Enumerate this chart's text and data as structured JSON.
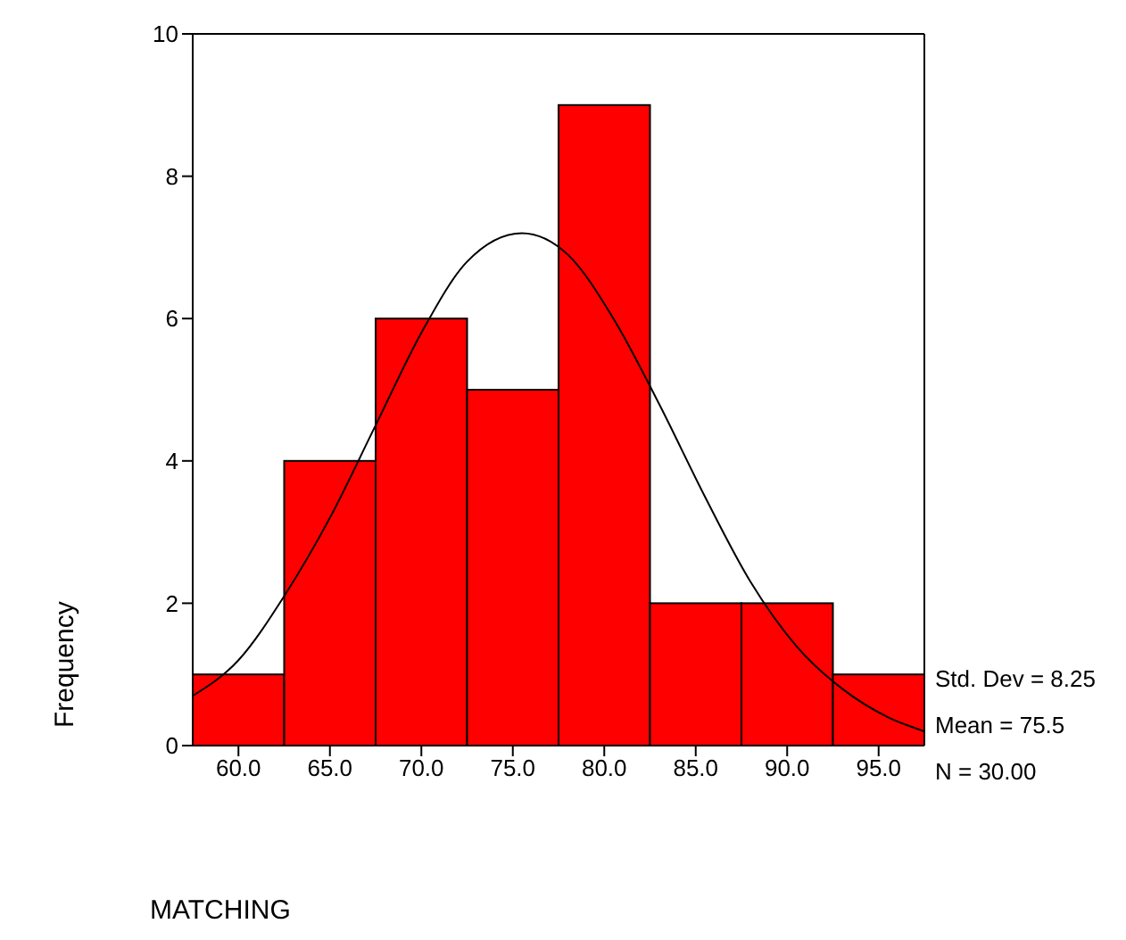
{
  "chart_data": {
    "type": "histogram",
    "xlabel": "MATCHING",
    "ylabel": "Frequency",
    "bins": [
      57.5,
      62.5,
      67.5,
      72.5,
      77.5,
      82.5,
      87.5,
      92.5,
      97.5
    ],
    "values": [
      1,
      4,
      6,
      5,
      9,
      2,
      2,
      1
    ],
    "color": "#ff0000",
    "series": [
      {
        "type": "line",
        "color": "#000000",
        "x": [
          57.5,
          60,
          62.5,
          65,
          67.5,
          70,
          72.5,
          75.5,
          78,
          80.5,
          83,
          85.5,
          88,
          90.5,
          93,
          95.5,
          97.5
        ],
        "values": [
          0.7,
          1.2,
          2.1,
          3.2,
          4.5,
          5.8,
          6.8,
          7.2,
          6.9,
          6.0,
          4.8,
          3.5,
          2.3,
          1.4,
          0.8,
          0.4,
          0.2
        ]
      }
    ],
    "xlim": [
      57.5,
      97.5
    ],
    "xticks": [
      {
        "value": 60,
        "label": "60.0"
      },
      {
        "value": 65,
        "label": "65.0"
      },
      {
        "value": 70,
        "label": "70.0"
      },
      {
        "value": 75,
        "label": "75.0"
      },
      {
        "value": 80,
        "label": "80.0"
      },
      {
        "value": 85,
        "label": "85.0"
      },
      {
        "value": 90,
        "label": "90.0"
      },
      {
        "value": 95,
        "label": "95.0"
      }
    ],
    "ylim": [
      0,
      10
    ],
    "yticks": [
      0,
      2,
      4,
      6,
      8,
      10
    ],
    "annotations": [
      "Std. Dev = 8.25",
      "Mean = 75.5",
      "N = 30.00"
    ],
    "grid": false,
    "marker": "none",
    "line_style": "solid"
  }
}
